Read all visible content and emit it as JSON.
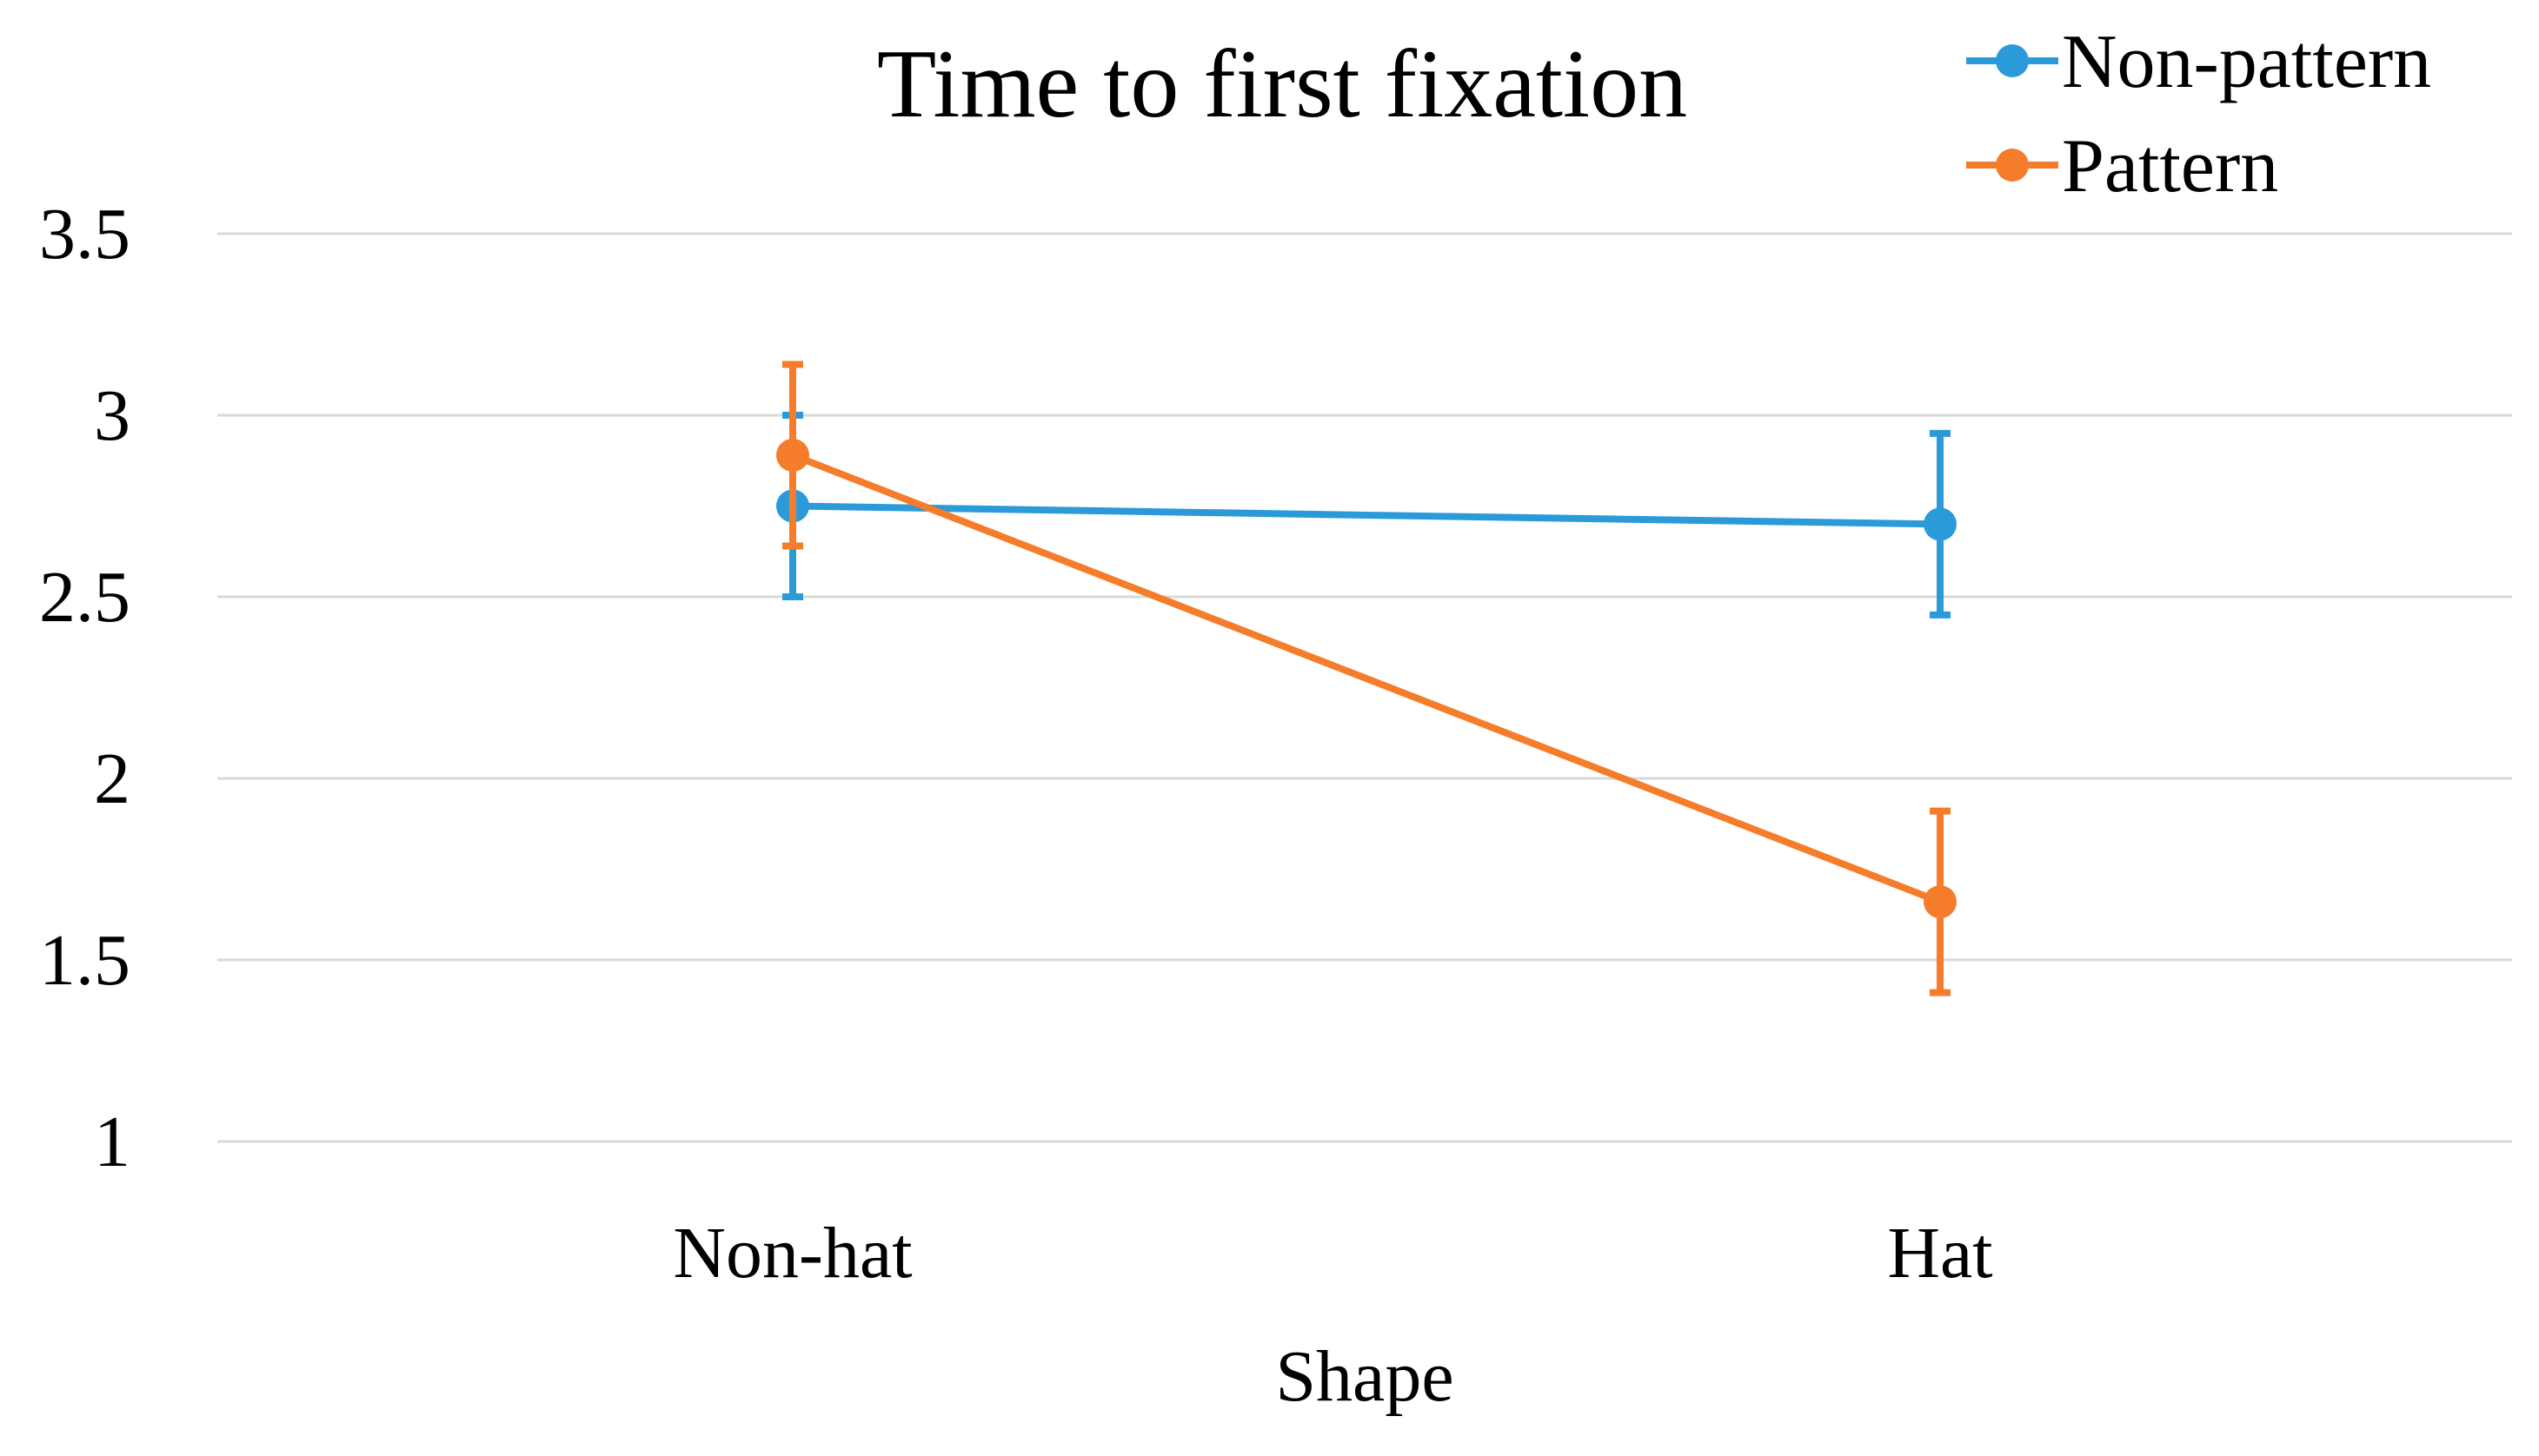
{
  "chart_data": {
    "type": "line",
    "title": "Time to first fixation",
    "xlabel": "Shape",
    "ylabel": "",
    "categories": [
      "Non-hat",
      "Hat"
    ],
    "ylim": [
      1,
      3.5
    ],
    "yticks": [
      1,
      1.5,
      2,
      2.5,
      3,
      3.5
    ],
    "ytick_labels": [
      "1",
      "1.5",
      "2",
      "2.5",
      "3",
      "3.5"
    ],
    "grid": true,
    "legend_position": "top-right",
    "series": [
      {
        "name": "Non-pattern",
        "color": "#2b9ad9",
        "values": [
          2.75,
          2.7
        ],
        "error_low": [
          2.5,
          2.45
        ],
        "error_high": [
          3.0,
          2.95
        ]
      },
      {
        "name": "Pattern",
        "color": "#f47c2a",
        "values": [
          2.89,
          1.66
        ],
        "error_low": [
          2.64,
          1.41
        ],
        "error_high": [
          3.14,
          1.91
        ]
      }
    ]
  }
}
